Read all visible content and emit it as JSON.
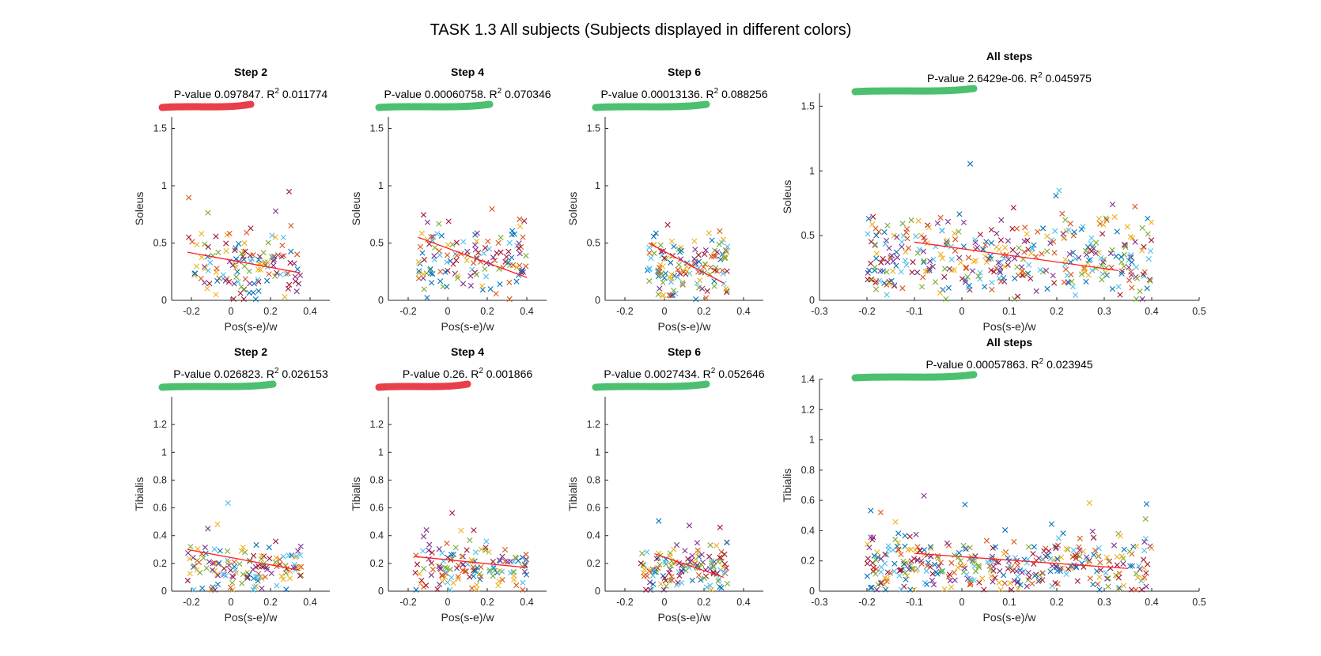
{
  "figure": {
    "title": "TASK 1.3 All subjects (Subjects displayed in different colors)"
  },
  "colors": {
    "subjects": [
      "#0072BD",
      "#D95319",
      "#EDB120",
      "#7E2F8E",
      "#77AC30",
      "#4DBEEE",
      "#A2142F"
    ],
    "fit_line": "#FF0000",
    "highlight_bad": "#E8404A",
    "highlight_good": "#4CC070"
  },
  "chart_data": [
    {
      "type": "scatter",
      "title": "Step 2",
      "subtitle": "P-value 0.097847. R",
      "r2": "0.011774",
      "xlabel": "Pos(s-e)/w",
      "ylabel": "Soleus",
      "xlim": [
        -0.3,
        0.5
      ],
      "ylim": [
        0,
        1.6
      ],
      "xticks": [
        "-0.2",
        "0",
        "0.2",
        "0.4"
      ],
      "yticks": [
        "0",
        "0.5",
        "1",
        "1.5"
      ],
      "fit": {
        "x": [
          -0.22,
          0.35
        ],
        "y": [
          0.42,
          0.24
        ]
      },
      "highlight": "bad",
      "seed": 11,
      "n": 130,
      "xr": [
        -0.22,
        0.36
      ],
      "yc": 0.3,
      "ys": 0.2
    },
    {
      "type": "scatter",
      "title": "Step 4",
      "subtitle": "P-value 0.00060758. R",
      "r2": "0.070346",
      "xlabel": "Pos(s-e)/w",
      "ylabel": "Soleus",
      "xlim": [
        -0.3,
        0.5
      ],
      "ylim": [
        0,
        1.6
      ],
      "xticks": [
        "-0.2",
        "0",
        "0.2",
        "0.4"
      ],
      "yticks": [
        "0",
        "0.5",
        "1",
        "1.5"
      ],
      "fit": {
        "x": [
          -0.15,
          0.4
        ],
        "y": [
          0.55,
          0.2
        ]
      },
      "highlight": "good",
      "seed": 23,
      "n": 130,
      "xr": [
        -0.15,
        0.4
      ],
      "yc": 0.35,
      "ys": 0.22
    },
    {
      "type": "scatter",
      "title": "Step 6",
      "subtitle": "P-value 0.00013136. R",
      "r2": "0.088256",
      "xlabel": "Pos(s-e)/w",
      "ylabel": "Soleus",
      "xlim": [
        -0.3,
        0.5
      ],
      "ylim": [
        0,
        1.6
      ],
      "xticks": [
        "-0.2",
        "0",
        "0.2",
        "0.4"
      ],
      "yticks": [
        "0",
        "0.5",
        "1",
        "1.5"
      ],
      "fit": {
        "x": [
          -0.08,
          0.3
        ],
        "y": [
          0.5,
          0.15
        ]
      },
      "highlight": "good",
      "seed": 37,
      "n": 130,
      "xr": [
        -0.1,
        0.32
      ],
      "yc": 0.3,
      "ys": 0.2
    },
    {
      "type": "scatter",
      "title": "All steps",
      "subtitle": "P-value 2.6429e-06. R",
      "r2": "0.045975",
      "xlabel": "Pos(s-e)/w",
      "ylabel": "Soleus",
      "xlim": [
        -0.3,
        0.5
      ],
      "ylim": [
        0,
        1.6
      ],
      "xticks": [
        "-0.3",
        "-0.2",
        "-0.1",
        "0",
        "0.1",
        "0.2",
        "0.3",
        "0.4",
        "0.5"
      ],
      "yticks": [
        "0",
        "0.5",
        "1",
        "1.5"
      ],
      "fit": {
        "x": [
          -0.1,
          0.33
        ],
        "y": [
          0.45,
          0.23
        ]
      },
      "highlight": "good",
      "seed": 41,
      "n": 360,
      "xr": [
        -0.2,
        0.4
      ],
      "yc": 0.32,
      "ys": 0.22
    },
    {
      "type": "scatter",
      "title": "Step 2",
      "subtitle": "P-value 0.026823. R",
      "r2": "0.026153",
      "xlabel": "Pos(s-e)/w",
      "ylabel": "Tibialis",
      "xlim": [
        -0.3,
        0.5
      ],
      "ylim": [
        0,
        1.4
      ],
      "xticks": [
        "-0.2",
        "0",
        "0.2",
        "0.4"
      ],
      "yticks": [
        "0",
        "0.2",
        "0.4",
        "0.6",
        "0.8",
        "1",
        "1.2"
      ],
      "fit": {
        "x": [
          -0.22,
          0.35
        ],
        "y": [
          0.3,
          0.15
        ]
      },
      "highlight": "good",
      "seed": 53,
      "n": 130,
      "xr": [
        -0.22,
        0.36
      ],
      "yc": 0.17,
      "ys": 0.13
    },
    {
      "type": "scatter",
      "title": "Step 4",
      "subtitle": "P-value 0.26. R",
      "r2": "0.001866",
      "xlabel": "Pos(s-e)/w",
      "ylabel": "Tibialis",
      "xlim": [
        -0.3,
        0.5
      ],
      "ylim": [
        0,
        1.4
      ],
      "xticks": [
        "-0.2",
        "0",
        "0.2",
        "0.4"
      ],
      "yticks": [
        "0",
        "0.2",
        "0.4",
        "0.6",
        "0.8",
        "1",
        "1.2"
      ],
      "fit": {
        "x": [
          -0.17,
          0.4
        ],
        "y": [
          0.25,
          0.17
        ]
      },
      "highlight": "bad",
      "seed": 67,
      "n": 130,
      "xr": [
        -0.17,
        0.4
      ],
      "yc": 0.18,
      "ys": 0.14
    },
    {
      "type": "scatter",
      "title": "Step 6",
      "subtitle": "P-value 0.0027434. R",
      "r2": "0.052646",
      "xlabel": "Pos(s-e)/w",
      "ylabel": "Tibialis",
      "xlim": [
        -0.3,
        0.5
      ],
      "ylim": [
        0,
        1.4
      ],
      "xticks": [
        "-0.2",
        "0",
        "0.2",
        "0.4"
      ],
      "yticks": [
        "0",
        "0.2",
        "0.4",
        "0.6",
        "0.8",
        "1",
        "1.2"
      ],
      "fit": {
        "x": [
          -0.05,
          0.3
        ],
        "y": [
          0.27,
          0.1
        ]
      },
      "highlight": "good",
      "seed": 79,
      "n": 130,
      "xr": [
        -0.12,
        0.32
      ],
      "yc": 0.16,
      "ys": 0.12
    },
    {
      "type": "scatter",
      "title": "All steps",
      "subtitle": "P-value 0.00057863. R",
      "r2": "0.023945",
      "xlabel": "Pos(s-e)/w",
      "ylabel": "Tibialis",
      "xlim": [
        -0.3,
        0.5
      ],
      "ylim": [
        0,
        1.4
      ],
      "xticks": [
        "-0.3",
        "-0.2",
        "-0.1",
        "0",
        "0.1",
        "0.2",
        "0.3",
        "0.4",
        "0.5"
      ],
      "yticks": [
        "0",
        "0.2",
        "0.4",
        "0.6",
        "0.8",
        "1",
        "1.2",
        "1.4"
      ],
      "fit": {
        "x": [
          -0.1,
          0.35
        ],
        "y": [
          0.25,
          0.15
        ]
      },
      "highlight": "good",
      "seed": 97,
      "n": 360,
      "xr": [
        -0.2,
        0.4
      ],
      "yc": 0.17,
      "ys": 0.13
    }
  ]
}
